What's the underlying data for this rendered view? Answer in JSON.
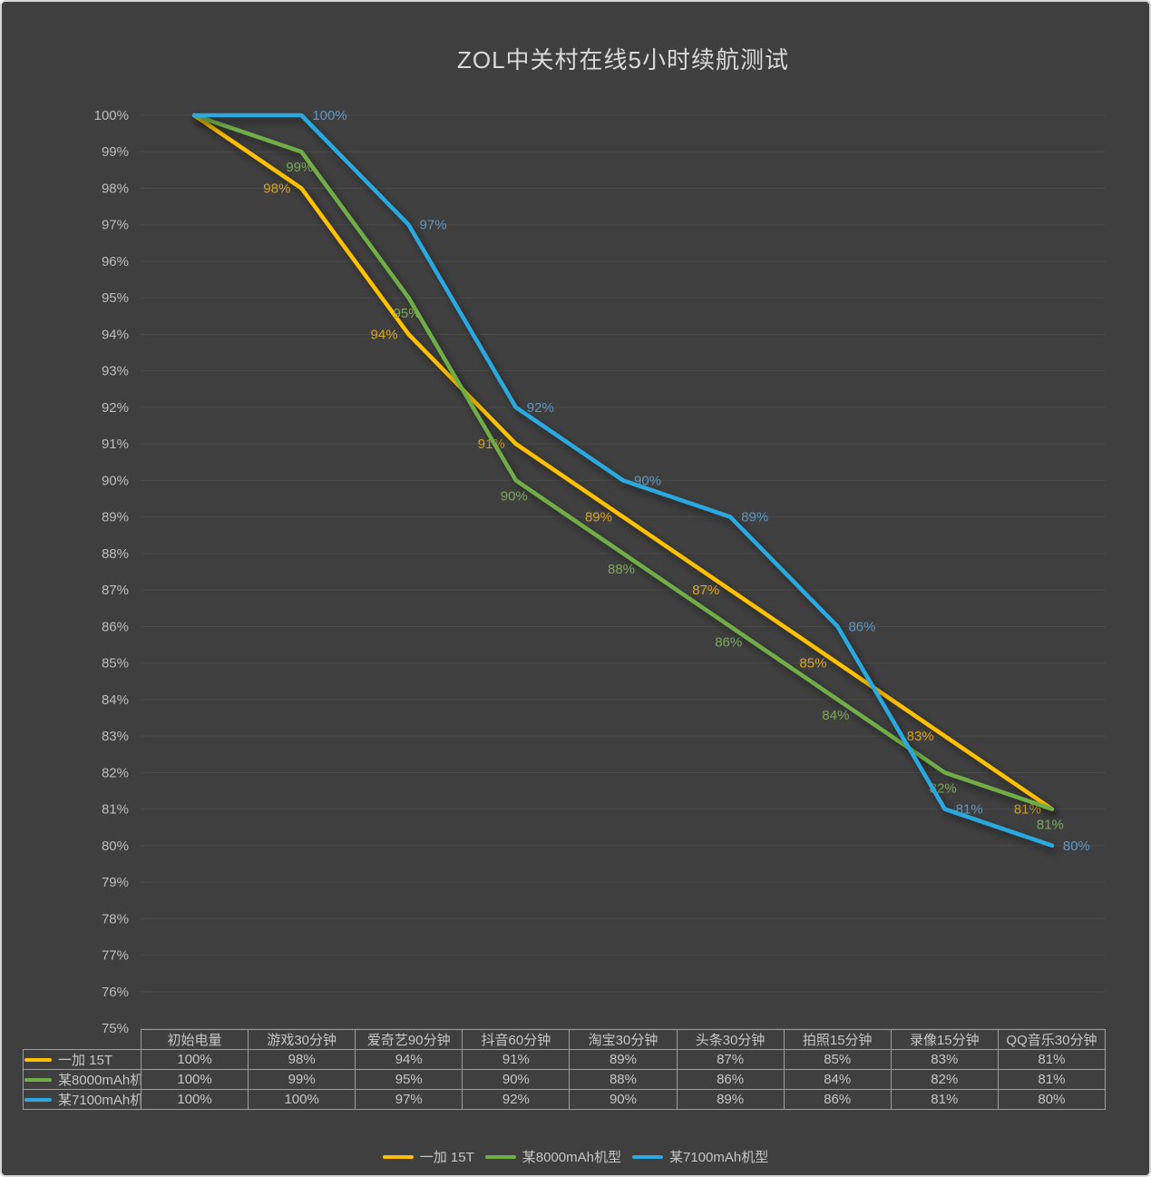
{
  "colors": {
    "background": "#3F3F3F",
    "frame_border": "#D6D6D6",
    "gridline": "#4B4B4B",
    "tick_text": "#BDBDBD",
    "table_border": "#9E9E9E",
    "table_text": "#C6C6C6",
    "title_text": "#D9D9D9"
  },
  "chart_data": {
    "type": "line",
    "title": "ZOL中关村在线5小时续航测试",
    "categories": [
      "初始电量",
      "游戏30分钟",
      "爱奇艺90分钟",
      "抖音60分钟",
      "淘宝30分钟",
      "头条30分钟",
      "拍照15分钟",
      "录像15分钟",
      "QQ音乐30分钟"
    ],
    "series": [
      {
        "name": "一加 15T",
        "color": "#FFC000",
        "label_color": "#D9A521",
        "label_side": "left",
        "values": [
          100,
          98,
          94,
          91,
          89,
          87,
          85,
          83,
          81
        ]
      },
      {
        "name": "某8000mAh机型",
        "color": "#70AD47",
        "label_color": "#7CA85A",
        "label_side": "below",
        "values": [
          100,
          99,
          95,
          90,
          88,
          86,
          84,
          82,
          81
        ]
      },
      {
        "name": "某7100mAh机型",
        "color": "#2CA9E1",
        "label_color": "#5E96C2",
        "label_side": "right",
        "values": [
          100,
          100,
          97,
          92,
          90,
          89,
          86,
          81,
          80
        ]
      }
    ],
    "ylim": [
      75,
      100
    ],
    "ytick_step": 1,
    "value_suffix": "%",
    "grid": true,
    "legend_position": "bottom",
    "data_table_shown": true,
    "first_point_labels_hidden": true
  }
}
